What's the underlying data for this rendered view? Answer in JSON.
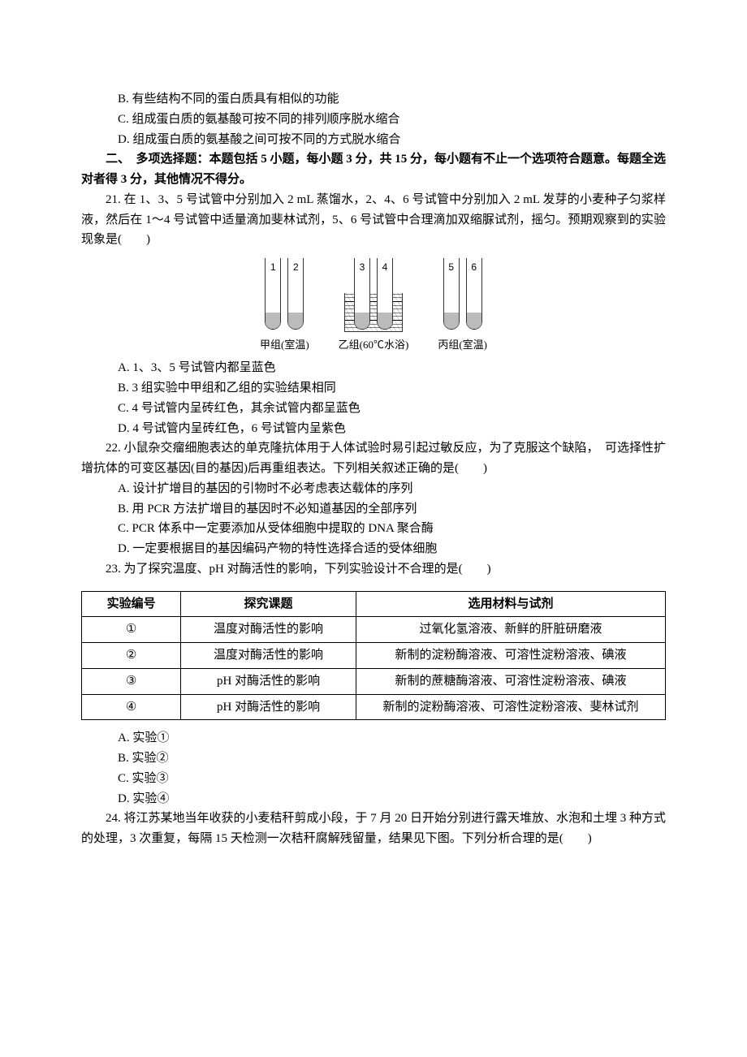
{
  "pre_options": {
    "B": "B. 有些结构不同的蛋白质具有相似的功能",
    "C": "C. 组成蛋白质的氨基酸可按不同的排列顺序脱水缩合",
    "D": "D. 组成蛋白质的氨基酸之间可按不同的方式脱水缩合"
  },
  "section2": {
    "heading": "二、　多项选择题：本题包括 5 小题，每小题 3 分，共 15 分，每小题有不止一个选项符合题意。每题全选对者得 3 分，其他情况不得分。"
  },
  "q21": {
    "stem": "21. 在 1、3、5 号试管中分别加入 2 mL 蒸馏水，2、4、6 号试管中分别加入 2 mL 发芽的小麦种子匀浆样液，然后在 1～4 号试管中适量滴加斐林试剂，5、6 号试管中合理滴加双缩脲试剂，摇匀。预期观察到的实验现象是(　　)",
    "figure": {
      "groups": [
        {
          "tubes": [
            "1",
            "2"
          ],
          "label": "甲组(室温)",
          "bath": false
        },
        {
          "tubes": [
            "3",
            "4"
          ],
          "label": "乙组(60℃水浴)",
          "bath": true
        },
        {
          "tubes": [
            "5",
            "6"
          ],
          "label": "丙组(室温)",
          "bath": false
        }
      ]
    },
    "options": {
      "A": "A. 1、3、5 号试管内都呈蓝色",
      "B": "B. 3 组实验中甲组和乙组的实验结果相同",
      "C": "C. 4 号试管内呈砖红色，其余试管内都呈蓝色",
      "D": "D. 4 号试管内呈砖红色，6 号试管内呈紫色"
    }
  },
  "q22": {
    "stem": "22. 小鼠杂交瘤细胞表达的单克隆抗体用于人体试验时易引起过敏反应，为了克服这个缺陷，　可选择性扩增抗体的可变区基因(目的基因)后再重组表达。下列相关叙述正确的是(　　)",
    "options": {
      "A": "A. 设计扩增目的基因的引物时不必考虑表达载体的序列",
      "B": "B. 用 PCR 方法扩增目的基因时不必知道基因的全部序列",
      "C": "C. PCR 体系中一定要添加从受体细胞中提取的 DNA 聚合酶",
      "D": "D. 一定要根据目的基因编码产物的特性选择合适的受体细胞"
    }
  },
  "q23": {
    "stem": "23. 为了探究温度、pH 对酶活性的影响，下列实验设计不合理的是(　　)",
    "table": {
      "headers": [
        "实验编号",
        "探究课题",
        "选用材料与试剂"
      ],
      "col_widths": [
        "17%",
        "30%",
        "53%"
      ],
      "rows": [
        [
          "①",
          "温度对酶活性的影响",
          "过氧化氢溶液、新鲜的肝脏研磨液"
        ],
        [
          "②",
          "温度对酶活性的影响",
          "新制的淀粉酶溶液、可溶性淀粉溶液、碘液"
        ],
        [
          "③",
          "pH 对酶活性的影响",
          "新制的蔗糖酶溶液、可溶性淀粉溶液、碘液"
        ],
        [
          "④",
          "pH 对酶活性的影响",
          "新制的淀粉酶溶液、可溶性淀粉溶液、斐林试剂"
        ]
      ]
    },
    "options": {
      "A": "A. 实验①",
      "B": "B. 实验②",
      "C": "C. 实验③",
      "D": "D. 实验④"
    }
  },
  "q24": {
    "stem": "24. 将江苏某地当年收获的小麦秸秆剪成小段，于 7 月 20 日开始分别进行露天堆放、水泡和土埋 3 种方式的处理，3 次重复，每隔 15 天检测一次秸秆腐解残留量，结果见下图。下列分析合理的是(　　)"
  }
}
